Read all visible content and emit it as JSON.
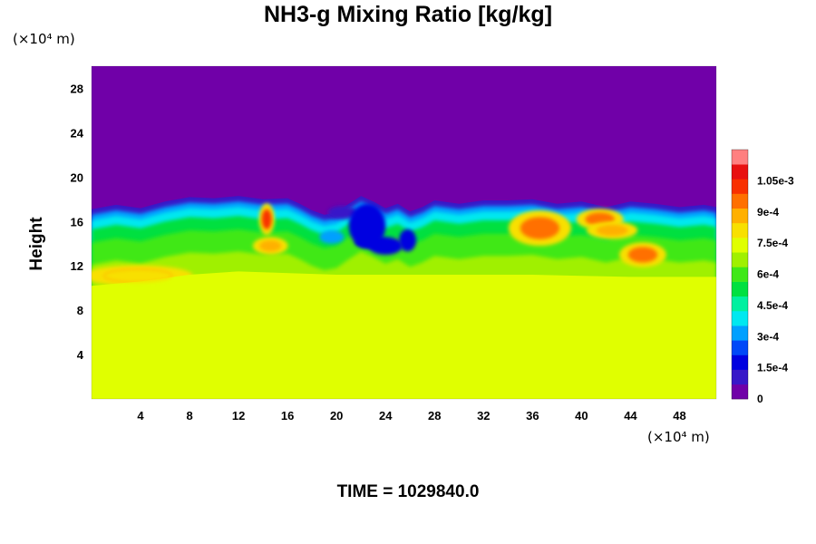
{
  "chart_data": {
    "type": "heatmap",
    "title": "NH3-g Mixing Ratio [kg/kg]",
    "ylabel": "Height",
    "xlabel": "",
    "y_unit": "(×10⁴ m)",
    "x_unit": "(×10⁴ m)",
    "footer": "TIME = 1029840.0",
    "xlim": [
      0,
      51
    ],
    "ylim": [
      0,
      30
    ],
    "x_ticks": [
      4,
      8,
      12,
      16,
      20,
      24,
      28,
      32,
      36,
      40,
      44,
      48
    ],
    "y_ticks": [
      4,
      8,
      12,
      16,
      20,
      24,
      28
    ],
    "field": {
      "top_value": 0,
      "bottom_value": 0.00075,
      "bottom_layer_top": [
        [
          0,
          10.2
        ],
        [
          4,
          10.6
        ],
        [
          8,
          11.2
        ],
        [
          12,
          11.5
        ],
        [
          20,
          11.2
        ],
        [
          28,
          11.2
        ],
        [
          36,
          11.2
        ],
        [
          44,
          11.0
        ],
        [
          51,
          11.0
        ]
      ],
      "cloud_top": [
        [
          0,
          17.1
        ],
        [
          2,
          17.5
        ],
        [
          4,
          17.2
        ],
        [
          6,
          17.8
        ],
        [
          8,
          18.2
        ],
        [
          10,
          18.1
        ],
        [
          12,
          18.3
        ],
        [
          14,
          18.0
        ],
        [
          16,
          18.1
        ],
        [
          17,
          17.6
        ],
        [
          18,
          17.0
        ],
        [
          19,
          16.6
        ],
        [
          20,
          16.8
        ],
        [
          21,
          17.6
        ],
        [
          22,
          18.3
        ],
        [
          23,
          17.8
        ],
        [
          24,
          17.2
        ],
        [
          25,
          17.6
        ],
        [
          26,
          16.9
        ],
        [
          27,
          17.3
        ],
        [
          28,
          17.9
        ],
        [
          30,
          17.6
        ],
        [
          32,
          17.9
        ],
        [
          34,
          17.9
        ],
        [
          36,
          18.0
        ],
        [
          38,
          17.6
        ],
        [
          40,
          17.8
        ],
        [
          42,
          17.3
        ],
        [
          44,
          17.8
        ],
        [
          46,
          17.6
        ],
        [
          48,
          17.3
        ],
        [
          50,
          17.5
        ],
        [
          51,
          17.3
        ]
      ],
      "blue_patches": [
        {
          "x": 20.5,
          "y": 16.8,
          "rx": 1.2,
          "ry": 0.6,
          "value": 0.0001
        },
        {
          "x": 22.5,
          "y": 15.6,
          "rx": 1.5,
          "ry": 2.0,
          "value": 0.00015
        },
        {
          "x": 24.0,
          "y": 13.8,
          "rx": 1.4,
          "ry": 0.8,
          "value": 0.00015
        },
        {
          "x": 25.8,
          "y": 14.3,
          "rx": 0.7,
          "ry": 1.0,
          "value": 0.00015
        },
        {
          "x": 19.6,
          "y": 14.6,
          "rx": 1.0,
          "ry": 0.6,
          "value": 0.0003
        },
        {
          "x": 22.8,
          "y": 14.1,
          "rx": 1.3,
          "ry": 0.5,
          "value": 0.00015
        }
      ],
      "hot_spots": [
        {
          "x": 14.3,
          "y": 16.2,
          "rx": 0.4,
          "ry": 0.9,
          "value": 0.00105
        },
        {
          "x": 36.6,
          "y": 15.4,
          "rx": 1.6,
          "ry": 1.0,
          "value": 0.00095
        },
        {
          "x": 41.5,
          "y": 16.2,
          "rx": 1.2,
          "ry": 0.6,
          "value": 0.00095
        },
        {
          "x": 45.0,
          "y": 13.0,
          "rx": 1.2,
          "ry": 0.7,
          "value": 0.00095
        },
        {
          "x": 3.8,
          "y": 11.1,
          "rx": 2.8,
          "ry": 0.6,
          "value": 0.0009
        },
        {
          "x": 14.6,
          "y": 13.8,
          "rx": 0.9,
          "ry": 0.5,
          "value": 0.0009
        },
        {
          "x": 42.5,
          "y": 15.2,
          "rx": 1.3,
          "ry": 0.5,
          "value": 0.00085
        }
      ]
    },
    "colorbar": {
      "min": 0,
      "max": 0.0012,
      "tick_values": [
        0,
        0.00015,
        0.0003,
        0.00045,
        0.0006,
        0.00075,
        0.0009,
        0.00105
      ],
      "tick_labels": [
        "0",
        "1.5e-4",
        "3e-4",
        "4.5e-4",
        "6e-4",
        "7.5e-4",
        "9e-4",
        "1.05e-3"
      ],
      "colors": [
        "#7000a8",
        "#3818c8",
        "#0000e0",
        "#0048f8",
        "#00a0ff",
        "#00e8f0",
        "#00f0a0",
        "#00e040",
        "#40e818",
        "#a0f000",
        "#e0ff00",
        "#f8e000",
        "#ffb000",
        "#ff7000",
        "#f83000",
        "#e81010",
        "#ff8080"
      ]
    }
  }
}
